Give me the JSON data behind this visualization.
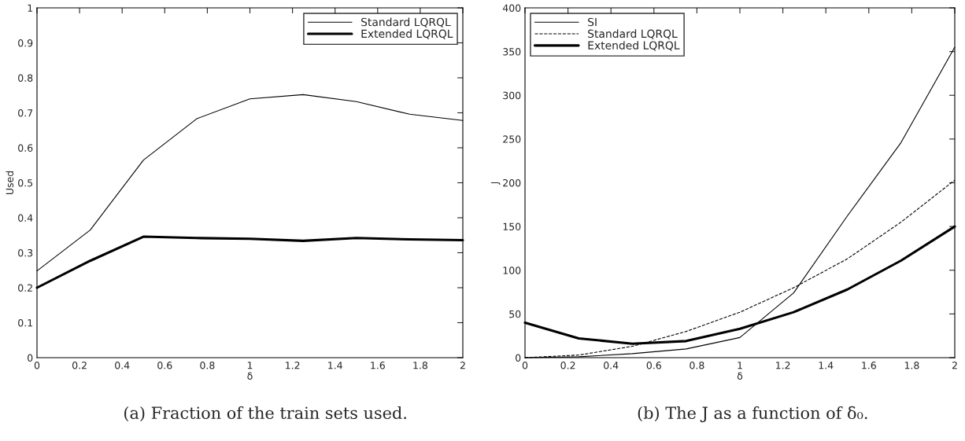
{
  "chart_data": [
    {
      "type": "line",
      "xlabel": "δ",
      "ylabel": "Used",
      "x": [
        0,
        0.25,
        0.5,
        0.75,
        1,
        1.25,
        1.5,
        1.75,
        2
      ],
      "series": [
        {
          "name": "Standard LQRQL",
          "color": "#000000",
          "line_style": "solid",
          "values": [
            0.248,
            0.365,
            0.565,
            0.683,
            0.74,
            0.752,
            0.732,
            0.696,
            0.678
          ]
        },
        {
          "name": "Extended LQRQL",
          "color": "#000000",
          "line_style": "solid",
          "values": [
            0.2,
            0.277,
            0.346,
            0.342,
            0.34,
            0.334,
            0.342,
            0.338,
            0.336
          ]
        }
      ],
      "xlim": [
        0,
        2
      ],
      "xticks": [
        0,
        0.2,
        0.4,
        0.6,
        0.8,
        1,
        1.2,
        1.4,
        1.6,
        1.8,
        2
      ],
      "ylim": [
        0,
        1
      ],
      "yticks": [
        0,
        0.1,
        0.2,
        0.3,
        0.4,
        0.5,
        0.6,
        0.7,
        0.8,
        0.9,
        1
      ],
      "grid": false,
      "legend": "top right",
      "marker": "none",
      "annotations": [
        "(a) Fraction of the train sets used."
      ]
    },
    {
      "type": "line",
      "xlabel": "δ",
      "ylabel": "J",
      "x": [
        0,
        0.25,
        0.5,
        0.75,
        1,
        1.25,
        1.5,
        1.75,
        2
      ],
      "series": [
        {
          "name": "SI",
          "color": "#000000",
          "line_style": "solid",
          "values": [
            0,
            1,
            4.6,
            10,
            23,
            74,
            162,
            246,
            355
          ]
        },
        {
          "name": "Standard LQRQL",
          "color": "#000000",
          "line_style": "dashed",
          "values": [
            0,
            3,
            13,
            30,
            52,
            80,
            113,
            155,
            203
          ]
        },
        {
          "name": "Extended LQRQL",
          "color": "#000000",
          "line_style": "solid",
          "values": [
            40,
            22,
            16,
            19,
            33,
            52,
            78,
            111,
            150
          ]
        }
      ],
      "xlim": [
        0,
        2
      ],
      "xticks": [
        0,
        0.2,
        0.4,
        0.6,
        0.8,
        1,
        1.2,
        1.4,
        1.6,
        1.8,
        2
      ],
      "ylim": [
        0,
        400
      ],
      "yticks": [
        0,
        50,
        100,
        150,
        200,
        250,
        300,
        350,
        400
      ],
      "grid": false,
      "legend": "top left",
      "marker": "none",
      "annotations": [
        "(b) The J as a function of δ₀."
      ]
    }
  ]
}
